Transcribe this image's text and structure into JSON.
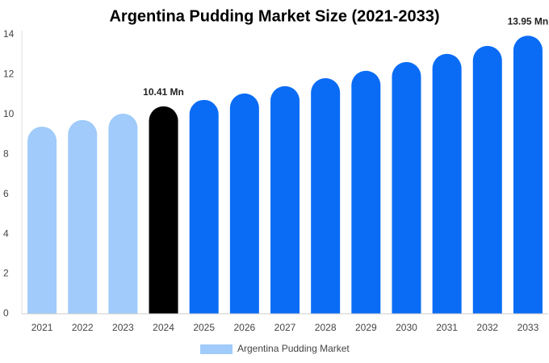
{
  "chart_data": {
    "type": "bar",
    "title": "Argentina Pudding Market Size (2021-2033)",
    "categories": [
      "2021",
      "2022",
      "2023",
      "2024",
      "2025",
      "2026",
      "2027",
      "2028",
      "2029",
      "2030",
      "2031",
      "2032",
      "2033"
    ],
    "series": [
      {
        "name": "Argentina Pudding Market",
        "color": "#a0cbfa",
        "colors": [
          "#a0cbfa",
          "#a0cbfa",
          "#a0cbfa",
          "#000000",
          "#0a6cf5",
          "#0a6cf5",
          "#0a6cf5",
          "#0a6cf5",
          "#0a6cf5",
          "#0a6cf5",
          "#0a6cf5",
          "#0a6cf5",
          "#0a6cf5"
        ],
        "values": [
          9.39,
          9.72,
          10.04,
          10.41,
          10.73,
          11.05,
          11.42,
          11.82,
          12.19,
          12.63,
          13.04,
          13.44,
          13.95
        ],
        "value_labels": [
          null,
          null,
          null,
          "10.41 Mn",
          null,
          null,
          null,
          null,
          null,
          null,
          null,
          null,
          "13.95 Mn"
        ]
      }
    ],
    "ylim": [
      0,
      14
    ],
    "yticks": [
      0,
      2,
      4,
      6,
      8,
      10,
      12,
      14
    ],
    "grid": false,
    "legend": "bottom"
  }
}
